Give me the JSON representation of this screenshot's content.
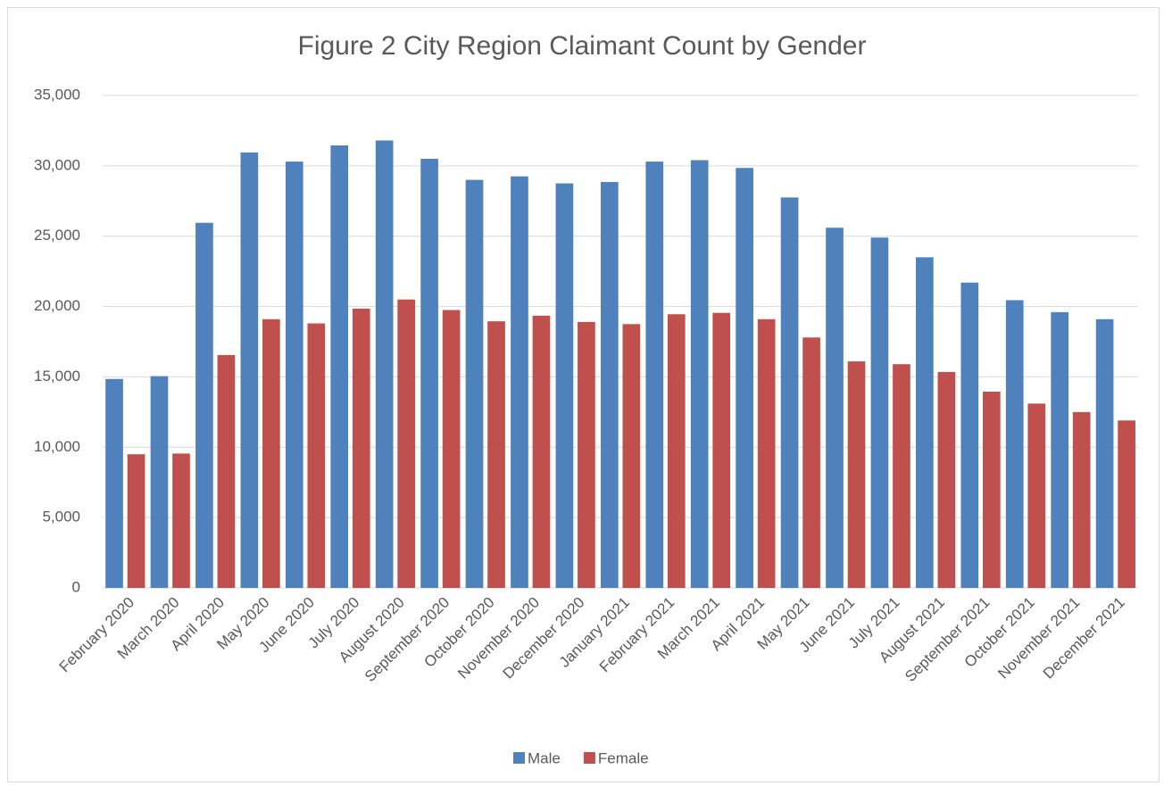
{
  "chart_data": {
    "type": "bar",
    "title": "Figure 2 City Region Claimant Count by Gender",
    "categories": [
      "February 2020",
      "March 2020",
      "April 2020",
      "May 2020",
      "June 2020",
      "July 2020",
      "August 2020",
      "September 2020",
      "October 2020",
      "November 2020",
      "December 2020",
      "January 2021",
      "February 2021",
      "March 2021",
      "April 2021",
      "May 2021",
      "June 2021",
      "July 2021",
      "August 2021",
      "September 2021",
      "October 2021",
      "November 2021",
      "December 2021"
    ],
    "series": [
      {
        "name": "Male",
        "color": "#4f81bd",
        "values": [
          14850,
          15050,
          25950,
          30950,
          30300,
          31450,
          31800,
          30500,
          29000,
          29250,
          28750,
          28850,
          30300,
          30400,
          29850,
          27750,
          25600,
          24900,
          23500,
          21700,
          20450,
          19600,
          19100
        ]
      },
      {
        "name": "Female",
        "color": "#c0504d",
        "values": [
          9500,
          9550,
          16550,
          19100,
          18800,
          19850,
          20500,
          19750,
          18950,
          19350,
          18900,
          18750,
          19450,
          19550,
          19100,
          17800,
          16100,
          15900,
          15350,
          13950,
          13100,
          12500,
          11900
        ]
      }
    ],
    "ylim": [
      0,
      35000
    ],
    "yticks": [
      0,
      {
        "value": 5000,
        "label": "5,000"
      },
      {
        "value": 10000,
        "label": "10,000"
      },
      {
        "value": 15000,
        "label": "15,000"
      },
      {
        "value": 20000,
        "label": "20,000"
      },
      {
        "value": 25000,
        "label": "25,000"
      },
      {
        "value": 30000,
        "label": "30,000"
      },
      {
        "value": 35000,
        "label": "35,000"
      }
    ],
    "grid": true,
    "legend": "bottom"
  }
}
